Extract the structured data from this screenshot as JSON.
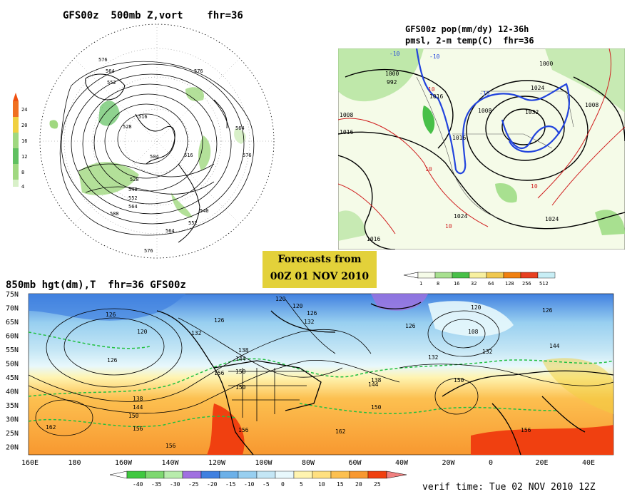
{
  "panel_500mb": {
    "title": "GFS00z  500mb Z,vort    fhr=36",
    "contour_labels": [
      "576",
      "564",
      "552",
      "576",
      "516",
      "528",
      "504",
      "516",
      "564",
      "576",
      "528",
      "540",
      "552",
      "564",
      "588",
      "540",
      "552",
      "564",
      "576"
    ],
    "legend": {
      "values": [
        "24",
        "20",
        "16",
        "12",
        "8",
        "4"
      ],
      "colors": [
        "#f07020",
        "#f0d040",
        "#a0d880",
        "#60c060",
        "#a0d880",
        "#d8f0c8"
      ]
    }
  },
  "panel_precip": {
    "title_line1": "GFS00z pop(mm/dy) 12-36h",
    "title_line2": "pmsl, 2-m temp(C)  fhr=36",
    "isobar_labels": [
      "1000",
      "992",
      "1016",
      "1000",
      "1008",
      "1032",
      "1024",
      "1008",
      "1016",
      "1016",
      "1024",
      "1016",
      "1024",
      "1008"
    ],
    "temp_labels": [
      "-10",
      "-10",
      "10",
      "-10",
      "10",
      "10",
      "10"
    ],
    "legend": {
      "values": [
        "1",
        "8",
        "16",
        "32",
        "64",
        "128",
        "256",
        "512"
      ],
      "colors": [
        "#f5fbe8",
        "#a8e090",
        "#48c048",
        "#f7f0a0",
        "#f0c850",
        "#f08010",
        "#e84020",
        "#c8eef5"
      ]
    }
  },
  "forecast_box": {
    "line1": "Forecasts from",
    "line2": "00Z 01 NOV 2010"
  },
  "panel_850mb": {
    "title": "850mb hgt(dm),T  fhr=36 GFS00z",
    "lat_labels": [
      "75N",
      "70N",
      "65N",
      "60N",
      "55N",
      "50N",
      "45N",
      "40N",
      "35N",
      "30N",
      "25N",
      "20N"
    ],
    "lon_labels": [
      "160E",
      "180",
      "160W",
      "140W",
      "120W",
      "100W",
      "80W",
      "60W",
      "40W",
      "20W",
      "0",
      "20E",
      "40E"
    ],
    "height_labels": [
      "120",
      "126",
      "120",
      "132",
      "126",
      "138",
      "144",
      "150",
      "156",
      "162",
      "156",
      "156",
      "150",
      "138",
      "144",
      "150",
      "156",
      "120",
      "126",
      "132",
      "108",
      "126",
      "144",
      "150",
      "150",
      "162",
      "156",
      "132",
      "120",
      "126",
      "132",
      "144",
      "126",
      "138"
    ],
    "legend": {
      "values": [
        "-40",
        "-35",
        "-30",
        "-25",
        "-20",
        "-15",
        "-10",
        "-5",
        "0",
        "5",
        "10",
        "15",
        "20",
        "25"
      ],
      "colors": [
        "#40c840",
        "#7ed870",
        "#b8ecac",
        "#a070e0",
        "#4080e0",
        "#6cb0e8",
        "#98cff0",
        "#c4e6f5",
        "#e8f8fc",
        "#fff4b0",
        "#ffe080",
        "#fcc050",
        "#f89830",
        "#f04010"
      ]
    }
  },
  "verif_time": "verif time: Tue 02 NOV 2010 12Z"
}
